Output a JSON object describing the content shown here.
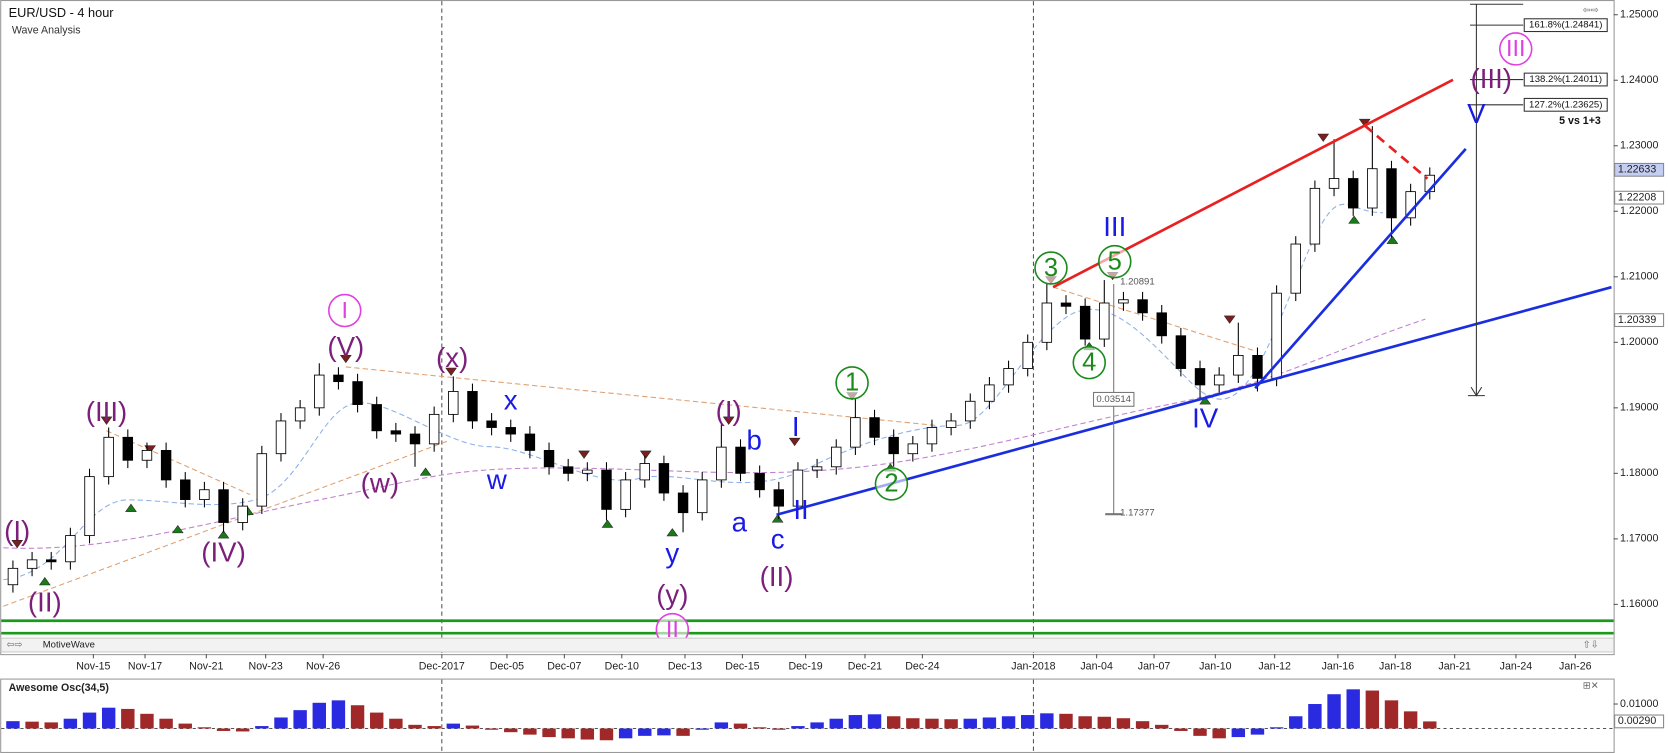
{
  "chart_data": {
    "type": "candlestick",
    "title": "EUR/USD - 4 hour",
    "subtitle": "Wave Analysis",
    "xlim": [
      -0.5,
      83.6
    ],
    "xticks": [
      {
        "value": 4.2,
        "label": "Nov-15"
      },
      {
        "value": 6.9,
        "label": "Nov-17"
      },
      {
        "value": 10.1,
        "label": "Nov-21"
      },
      {
        "value": 13.2,
        "label": "Nov-23"
      },
      {
        "value": 16.2,
        "label": "Nov-26"
      },
      {
        "value": 22.4,
        "label": "Dec-2017"
      },
      {
        "value": 25.8,
        "label": "Dec-05"
      },
      {
        "value": 28.8,
        "label": "Dec-07"
      },
      {
        "value": 31.8,
        "label": "Dec-10"
      },
      {
        "value": 35.1,
        "label": "Dec-13"
      },
      {
        "value": 38.1,
        "label": "Dec-15"
      },
      {
        "value": 41.4,
        "label": "Dec-19"
      },
      {
        "value": 44.5,
        "label": "Dec-21"
      },
      {
        "value": 47.5,
        "label": "Dec-24"
      },
      {
        "value": 53.3,
        "label": "Jan-2018"
      },
      {
        "value": 56.6,
        "label": "Jan-04"
      },
      {
        "value": 59.6,
        "label": "Jan-07"
      },
      {
        "value": 62.8,
        "label": "Jan-10"
      },
      {
        "value": 65.9,
        "label": "Jan-12"
      },
      {
        "value": 69.2,
        "label": "Jan-16"
      },
      {
        "value": 72.2,
        "label": "Jan-18"
      },
      {
        "value": 75.3,
        "label": "Jan-21"
      },
      {
        "value": 78.5,
        "label": "Jan-24"
      },
      {
        "value": 81.6,
        "label": "Jan-26"
      }
    ],
    "ylim": [
      1.1529,
      1.2516
    ],
    "yticks": [
      {
        "value": 1.16,
        "label": "1.16000"
      },
      {
        "value": 1.17,
        "label": "1.17000"
      },
      {
        "value": 1.18,
        "label": "1.18000"
      },
      {
        "value": 1.19,
        "label": "1.19000"
      },
      {
        "value": 1.2,
        "label": "1.20000"
      },
      {
        "value": 1.21,
        "label": "1.21000"
      },
      {
        "value": 1.22,
        "label": "1.22000"
      },
      {
        "value": 1.23,
        "label": "1.23000"
      },
      {
        "value": 1.24,
        "label": "1.24000"
      },
      {
        "value": 1.25,
        "label": "1.25000"
      }
    ],
    "up_color": "#ffffff",
    "down_color": "#000000",
    "ohlc": [
      [
        1.163,
        1.1667,
        1.1618,
        1.1655
      ],
      [
        1.1655,
        1.168,
        1.1643,
        1.1668
      ],
      [
        1.1668,
        1.168,
        1.1653,
        1.1665
      ],
      [
        1.1665,
        1.1717,
        1.1653,
        1.1705
      ],
      [
        1.1705,
        1.1807,
        1.1693,
        1.1795
      ],
      [
        1.1795,
        1.187,
        1.1783,
        1.1855
      ],
      [
        1.1855,
        1.1867,
        1.1808,
        1.182
      ],
      [
        1.182,
        1.1847,
        1.1808,
        1.1835
      ],
      [
        1.1835,
        1.1847,
        1.1778,
        1.179
      ],
      [
        1.179,
        1.1802,
        1.1748,
        1.176
      ],
      [
        1.176,
        1.1787,
        1.1748,
        1.1775
      ],
      [
        1.1775,
        1.1787,
        1.171,
        1.1725
      ],
      [
        1.1725,
        1.1762,
        1.1713,
        1.175
      ],
      [
        1.175,
        1.1842,
        1.1738,
        1.183
      ],
      [
        1.183,
        1.1892,
        1.1818,
        1.188
      ],
      [
        1.188,
        1.1912,
        1.1868,
        1.19
      ],
      [
        1.19,
        1.1968,
        1.1888,
        1.195
      ],
      [
        1.195,
        1.1962,
        1.1928,
        1.194
      ],
      [
        1.194,
        1.1952,
        1.1893,
        1.1905
      ],
      [
        1.1905,
        1.1917,
        1.1853,
        1.1865
      ],
      [
        1.1865,
        1.1877,
        1.1848,
        1.186
      ],
      [
        1.186,
        1.1872,
        1.181,
        1.1845
      ],
      [
        1.1845,
        1.1902,
        1.1833,
        1.189
      ],
      [
        1.189,
        1.1948,
        1.1878,
        1.1925
      ],
      [
        1.1925,
        1.1937,
        1.1868,
        1.188
      ],
      [
        1.188,
        1.1892,
        1.1858,
        1.187
      ],
      [
        1.187,
        1.1882,
        1.1848,
        1.186
      ],
      [
        1.186,
        1.1872,
        1.1823,
        1.1835
      ],
      [
        1.1835,
        1.1847,
        1.1798,
        1.181
      ],
      [
        1.181,
        1.1822,
        1.1788,
        1.18
      ],
      [
        1.18,
        1.1817,
        1.1788,
        1.1805
      ],
      [
        1.1805,
        1.1817,
        1.1728,
        1.1745
      ],
      [
        1.1745,
        1.1802,
        1.1733,
        1.179
      ],
      [
        1.179,
        1.1827,
        1.1778,
        1.1815
      ],
      [
        1.1815,
        1.1827,
        1.1758,
        1.177
      ],
      [
        1.177,
        1.1782,
        1.171,
        1.174
      ],
      [
        1.174,
        1.1802,
        1.1728,
        1.179
      ],
      [
        1.179,
        1.1875,
        1.1778,
        1.184
      ],
      [
        1.184,
        1.1852,
        1.1788,
        1.18
      ],
      [
        1.18,
        1.1812,
        1.1763,
        1.1775
      ],
      [
        1.1775,
        1.1787,
        1.173,
        1.175
      ],
      [
        1.175,
        1.1817,
        1.1738,
        1.1805
      ],
      [
        1.1805,
        1.1822,
        1.1793,
        1.181
      ],
      [
        1.181,
        1.1852,
        1.1798,
        1.184
      ],
      [
        1.184,
        1.1915,
        1.1828,
        1.1885
      ],
      [
        1.1885,
        1.1897,
        1.1843,
        1.1855
      ],
      [
        1.1855,
        1.1867,
        1.181,
        1.183
      ],
      [
        1.183,
        1.1857,
        1.1818,
        1.1845
      ],
      [
        1.1845,
        1.1882,
        1.1833,
        1.187
      ],
      [
        1.187,
        1.1892,
        1.1858,
        1.188
      ],
      [
        1.188,
        1.1922,
        1.1868,
        1.191
      ],
      [
        1.191,
        1.1947,
        1.1898,
        1.1935
      ],
      [
        1.1935,
        1.1972,
        1.1923,
        1.196
      ],
      [
        1.196,
        1.2012,
        1.1948,
        1.2
      ],
      [
        1.2,
        1.209,
        1.1988,
        1.206
      ],
      [
        1.206,
        1.2072,
        1.2043,
        1.2055
      ],
      [
        1.2055,
        1.2067,
        1.1995,
        1.2005
      ],
      [
        1.2005,
        1.2095,
        1.1993,
        1.206
      ],
      [
        1.206,
        1.2077,
        1.2048,
        1.2065
      ],
      [
        1.2065,
        1.2077,
        1.2033,
        1.2045
      ],
      [
        1.2045,
        1.2057,
        1.1998,
        1.201
      ],
      [
        1.201,
        1.2022,
        1.1948,
        1.196
      ],
      [
        1.196,
        1.1972,
        1.1915,
        1.1935
      ],
      [
        1.1935,
        1.1962,
        1.1923,
        1.195
      ],
      [
        1.195,
        1.203,
        1.1938,
        1.198
      ],
      [
        1.198,
        1.1992,
        1.1925,
        1.1945
      ],
      [
        1.1945,
        1.2087,
        1.1933,
        1.2075
      ],
      [
        1.2075,
        1.2162,
        1.2063,
        1.215
      ],
      [
        1.215,
        1.2247,
        1.2138,
        1.2235
      ],
      [
        1.2235,
        1.231,
        1.2223,
        1.225
      ],
      [
        1.225,
        1.2262,
        1.2193,
        1.2205
      ],
      [
        1.2205,
        1.233,
        1.2193,
        1.2265
      ],
      [
        1.2265,
        1.2277,
        1.216,
        1.219
      ],
      [
        1.219,
        1.2242,
        1.2178,
        1.223
      ],
      [
        1.223,
        1.2267,
        1.2218,
        1.2255
      ]
    ],
    "price_tags": [
      1.22633,
      1.22208,
      1.20339
    ],
    "fib_levels": [
      {
        "value": 1.24841,
        "label": "161.8%(1.24841)"
      },
      {
        "value": 1.24011,
        "label": "138.2%(1.24011)"
      },
      {
        "value": 1.23625,
        "label": "127.2%(1.23625)"
      }
    ],
    "fib_note": "5 vs 1+3",
    "measure": {
      "high": 1.20891,
      "range": 0.03514,
      "low": 1.17377
    },
    "support_lines": [
      1.1575,
      1.1556
    ],
    "annotations": [
      {
        "text": "(I)",
        "color": "#7b1f7b",
        "circled": false
      },
      {
        "text": "(II)",
        "color": "#7b1f7b",
        "circled": false
      },
      {
        "text": "(III)",
        "color": "#7b1f7b",
        "circled": false
      },
      {
        "text": "(IV)",
        "color": "#7b1f7b",
        "circled": false
      },
      {
        "text": "(V)",
        "color": "#7b1f7b",
        "circled": false
      },
      {
        "text": "(w)",
        "color": "#7b1f7b",
        "circled": false
      },
      {
        "text": "(x)",
        "color": "#7b1f7b",
        "circled": false
      },
      {
        "text": "(y)",
        "color": "#7b1f7b",
        "circled": false
      },
      {
        "text": "(I)",
        "color": "#7b1f7b",
        "circled": false
      },
      {
        "text": "(II)",
        "color": "#7b1f7b",
        "circled": false
      },
      {
        "text": "(III)",
        "color": "#7b1f7b",
        "circled": false
      },
      {
        "text": "I",
        "color": "#e040e0",
        "circled": true
      },
      {
        "text": "II",
        "color": "#e040e0",
        "circled": true
      },
      {
        "text": "III",
        "color": "#e040e0",
        "circled": true
      },
      {
        "text": "x",
        "color": "#1a1ae6",
        "circled": false
      },
      {
        "text": "w",
        "color": "#1a1ae6",
        "circled": false
      },
      {
        "text": "y",
        "color": "#1a1ae6",
        "circled": false
      },
      {
        "text": "a",
        "color": "#1a1ae6",
        "circled": false
      },
      {
        "text": "b",
        "color": "#1a1ae6",
        "circled": false
      },
      {
        "text": "c",
        "color": "#1a1ae6",
        "circled": false
      },
      {
        "text": "I",
        "color": "#1a1ae6",
        "circled": false
      },
      {
        "text": "II",
        "color": "#1a1ae6",
        "circled": false
      },
      {
        "text": "III",
        "color": "#1a1ae6",
        "circled": false
      },
      {
        "text": "IV",
        "color": "#1a1ae6",
        "circled": false
      },
      {
        "text": "V",
        "color": "#1a1ae6",
        "circled": false
      },
      {
        "text": "1",
        "color": "#1a8a1a",
        "circled": true
      },
      {
        "text": "2",
        "color": "#1a8a1a",
        "circled": true
      },
      {
        "text": "3",
        "color": "#1a8a1a",
        "circled": true
      },
      {
        "text": "4",
        "color": "#1a8a1a",
        "circled": true
      },
      {
        "text": "5",
        "color": "#1a8a1a",
        "circled": true
      }
    ],
    "toolbar": "MotiveWave",
    "indicator": {
      "type": "bar",
      "title": "Awesome Osc(34,5)",
      "up_color": "#2a2ae0",
      "down_color": "#a02828",
      "ylim": [
        -0.01,
        0.0204
      ],
      "yticks": [
        {
          "value": 0.01,
          "label": "0.01000"
        }
      ],
      "last": {
        "value": 0.0029,
        "label": "0.00290"
      },
      "values": [
        0.003,
        0.0028,
        0.0025,
        0.004,
        0.0065,
        0.0085,
        0.008,
        0.006,
        0.004,
        0.002,
        0.0005,
        -0.001,
        -0.0012,
        0.001,
        0.0045,
        0.0075,
        0.0105,
        0.0115,
        0.0095,
        0.0065,
        0.004,
        0.0015,
        0.001,
        0.002,
        0.0012,
        -0.0005,
        -0.0015,
        -0.0025,
        -0.0035,
        -0.004,
        -0.0045,
        -0.0048,
        -0.004,
        -0.003,
        -0.0028,
        -0.003,
        -0.0005,
        0.0025,
        0.002,
        0.0005,
        -0.0005,
        0.001,
        0.0025,
        0.004,
        0.0055,
        0.0058,
        0.005,
        0.0042,
        0.004,
        0.0038,
        0.004,
        0.0045,
        0.005,
        0.0055,
        0.0062,
        0.006,
        0.005,
        0.0048,
        0.0042,
        0.003,
        0.0015,
        -0.001,
        -0.003,
        -0.004,
        -0.0035,
        -0.0025,
        0.0005,
        0.005,
        0.01,
        0.014,
        0.016,
        0.0155,
        0.0115,
        0.007,
        0.0029
      ]
    }
  }
}
